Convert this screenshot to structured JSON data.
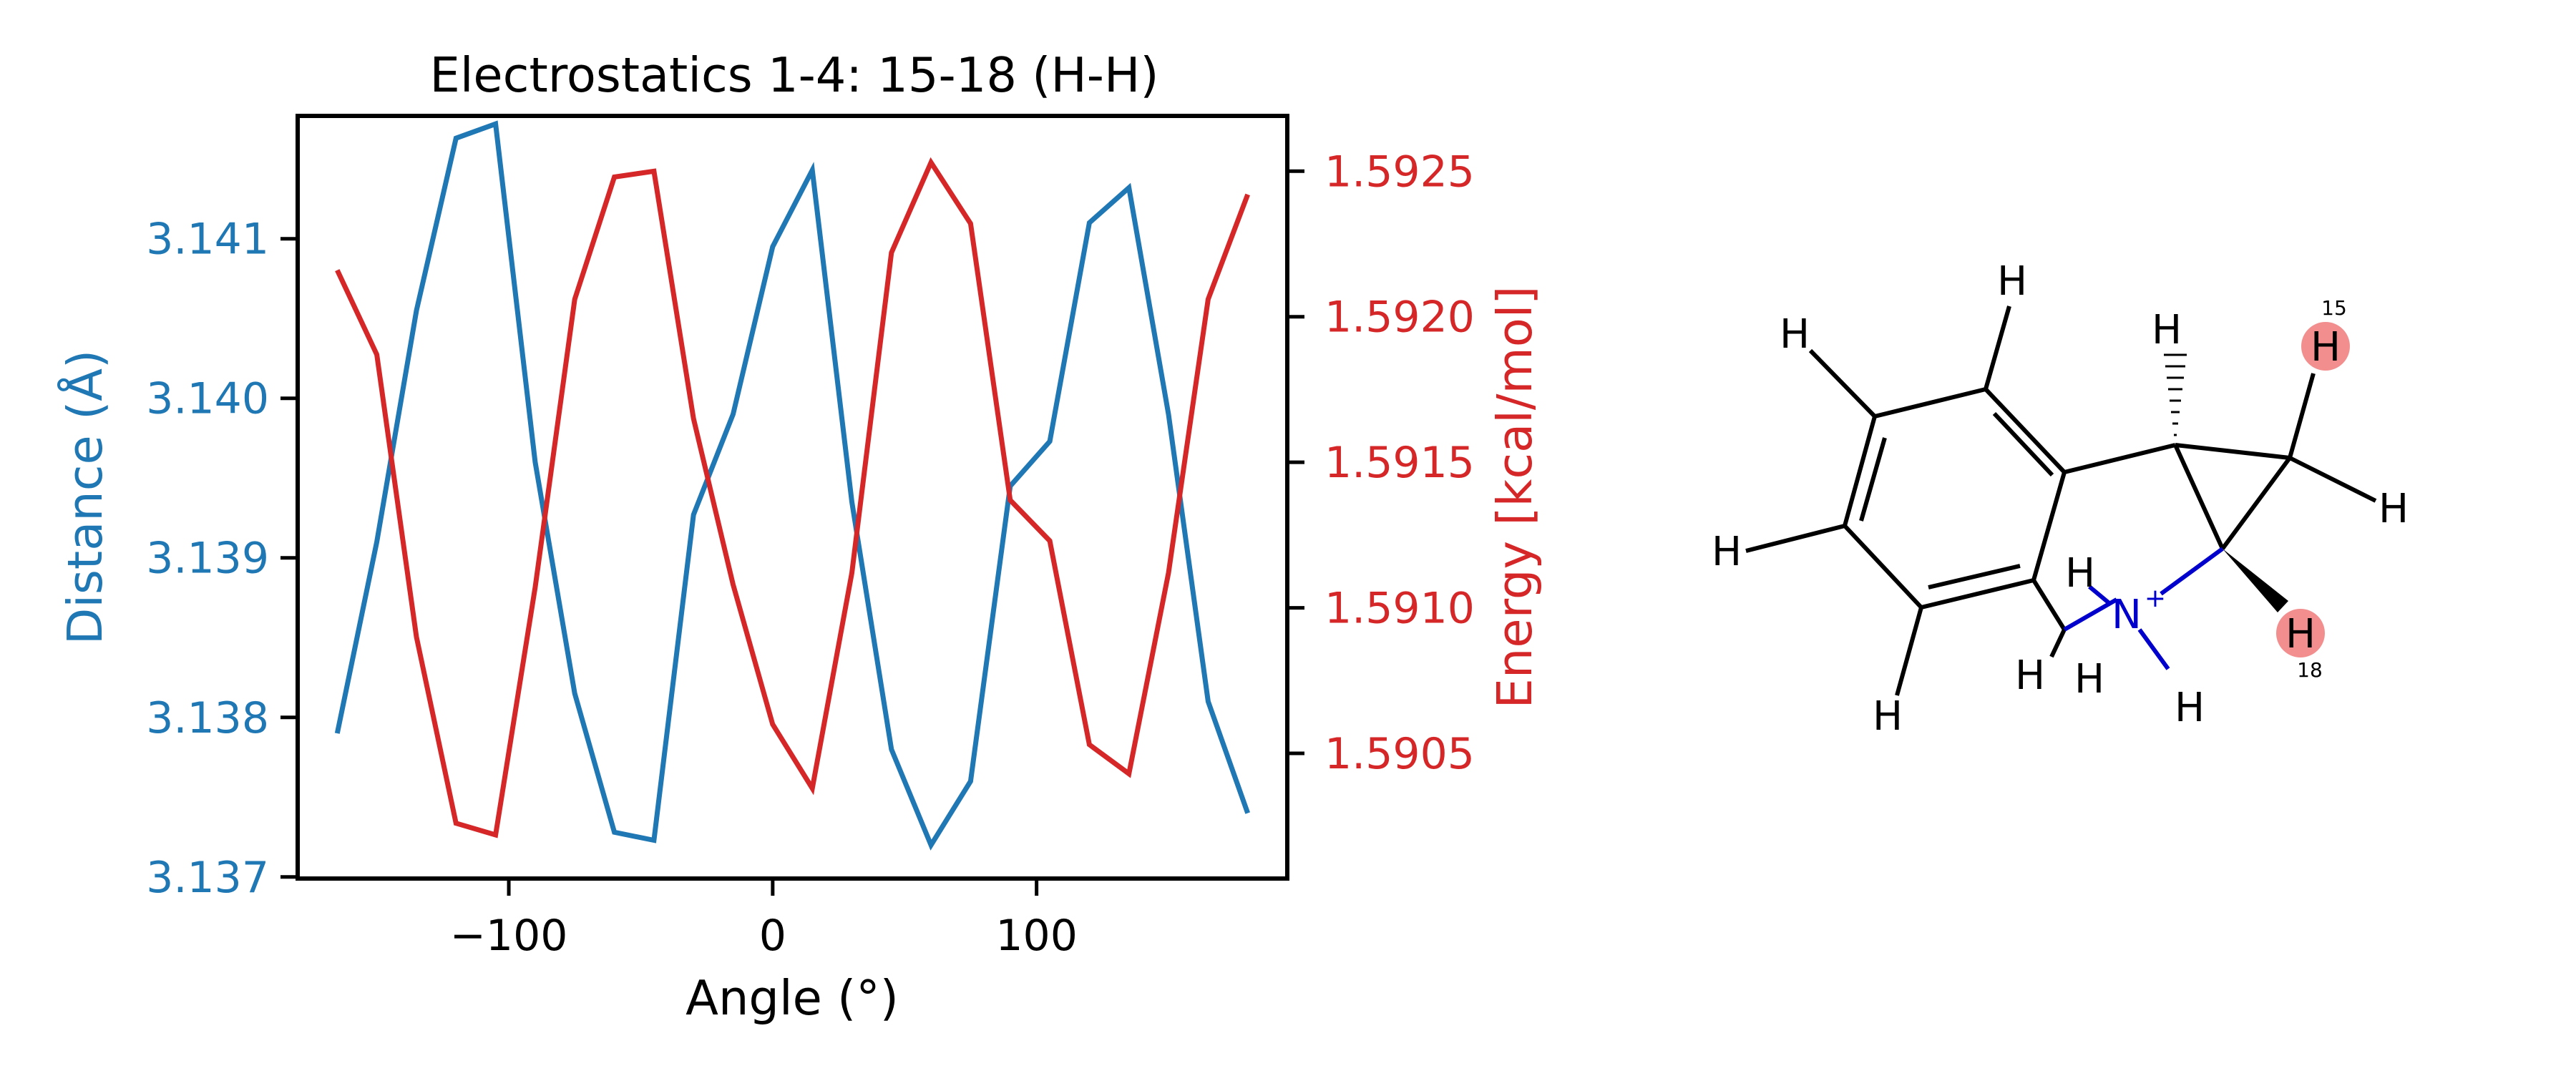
{
  "chart_data": {
    "type": "line",
    "title": "Electrostatics 1-4: 15-18 (H-H)",
    "xlabel": "Angle (°)",
    "y_left_label": "Distance (Å)",
    "y_right_label": "Energy [kcal/mol]",
    "xlim": [
      -180,
      195
    ],
    "y_left_lim": [
      3.13699,
      3.14177
    ],
    "y_right_lim": [
      1.59007,
      1.59269
    ],
    "x_ticks": [
      -100,
      0,
      100
    ],
    "x_tick_labels": [
      "−100",
      "0",
      "100"
    ],
    "y_left_ticks": [
      3.137,
      3.138,
      3.139,
      3.14,
      3.141
    ],
    "y_left_tick_labels": [
      "3.137",
      "3.138",
      "3.139",
      "3.140",
      "3.141"
    ],
    "y_right_ticks": [
      1.5905,
      1.591,
      1.5915,
      1.592,
      1.5925
    ],
    "y_right_tick_labels": [
      "1.5905",
      "1.5910",
      "1.5915",
      "1.5920",
      "1.5925"
    ],
    "grid": false,
    "colors": {
      "distance": "#1f77b4",
      "energy": "#d62728"
    },
    "x": [
      -165,
      -150,
      -135,
      -120,
      -105,
      -90,
      -75,
      -60,
      -45,
      -30,
      -15,
      0,
      15,
      30,
      45,
      60,
      75,
      90,
      105,
      120,
      135,
      150,
      165,
      180
    ],
    "series": [
      {
        "axis": "left",
        "values": [
          3.1379,
          3.1391,
          3.14055,
          3.14163,
          3.14172,
          3.1396,
          3.13815,
          3.13728,
          3.13723,
          3.13927,
          3.1399,
          3.14095,
          3.14143,
          3.13935,
          3.1378,
          3.1372,
          3.1376,
          3.13945,
          3.13973,
          3.1411,
          3.14132,
          3.1399,
          3.1381,
          3.1374
        ]
      },
      {
        "axis": "right",
        "values": [
          1.59216,
          1.59187,
          1.5909,
          1.59026,
          1.59022,
          1.59107,
          1.59206,
          1.59248,
          1.5925,
          1.59165,
          1.59108,
          1.5906,
          1.59038,
          1.59112,
          1.59222,
          1.59253,
          1.59232,
          1.59137,
          1.59123,
          1.59053,
          1.59043,
          1.59112,
          1.59206,
          1.59242
        ]
      }
    ]
  },
  "molecule": {
    "atom_labels": [
      "H",
      "H",
      "H",
      "H",
      "H",
      "H",
      "H",
      "H",
      "H",
      "H",
      "H",
      "N"
    ],
    "charge": "+",
    "highlight_labels": [
      "15",
      "18"
    ],
    "highlight_color": "#f28e8e",
    "nitrogen_color": "#0000cc"
  }
}
